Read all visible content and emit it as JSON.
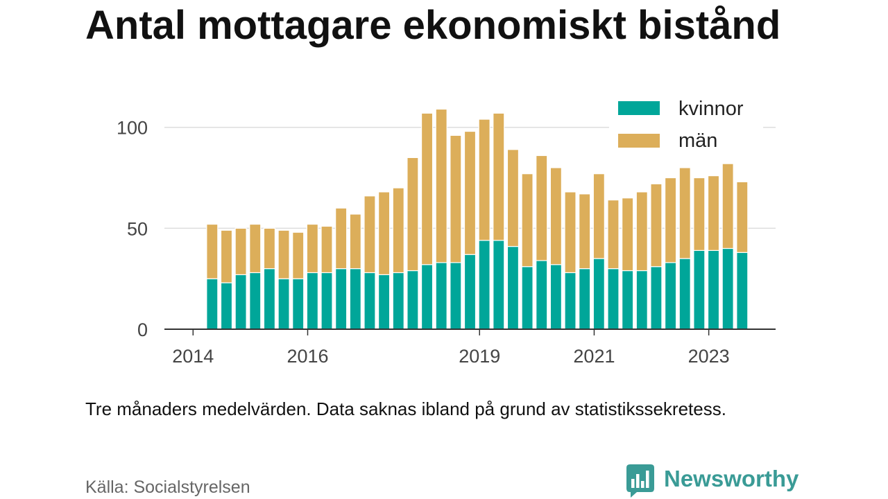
{
  "chart_data": {
    "type": "bar",
    "stacked": true,
    "title": "Antal mottagare ekonomiskt bistånd",
    "note": "Tre månaders medelvärden. Data saknas ibland på grund av statistikssekretess.",
    "xlabel": "",
    "ylabel": "",
    "x": [
      "2014-05",
      "2014-08",
      "2014-11",
      "2015-02",
      "2015-05",
      "2015-08",
      "2015-11",
      "2016-02",
      "2016-05",
      "2016-08",
      "2016-11",
      "2017-02",
      "2017-05",
      "2017-08",
      "2017-11",
      "2018-02",
      "2018-05",
      "2018-08",
      "2018-11",
      "2019-02",
      "2019-05",
      "2019-08",
      "2019-11",
      "2020-02",
      "2020-05",
      "2020-08",
      "2020-11",
      "2021-02",
      "2021-05",
      "2021-08",
      "2021-11",
      "2022-02",
      "2022-05",
      "2022-08",
      "2022-11",
      "2023-02",
      "2023-05",
      "2023-08"
    ],
    "series": [
      {
        "name": "kvinnor",
        "color": "#00a699",
        "values": [
          25,
          23,
          27,
          28,
          30,
          25,
          25,
          28,
          28,
          30,
          30,
          28,
          27,
          28,
          29,
          32,
          33,
          33,
          37,
          44,
          44,
          41,
          31,
          34,
          32,
          28,
          30,
          35,
          30,
          29,
          29,
          31,
          33,
          35,
          39,
          39,
          40,
          38
        ]
      },
      {
        "name": "män",
        "color": "#dcae5a",
        "values": [
          27,
          26,
          23,
          24,
          20,
          24,
          23,
          24,
          23,
          30,
          27,
          38,
          41,
          42,
          56,
          75,
          76,
          63,
          61,
          60,
          63,
          48,
          46,
          52,
          48,
          40,
          37,
          42,
          34,
          36,
          39,
          41,
          42,
          45,
          36,
          37,
          42,
          35
        ]
      }
    ],
    "xlim": [
      "2013-07",
      "2024-03"
    ],
    "xticks": [
      "2014",
      "2016",
      "2019",
      "2021",
      "2023"
    ],
    "ylim": [
      0,
      115
    ],
    "yticks": [
      0,
      50,
      100
    ],
    "grid": true,
    "legend": "top-right"
  },
  "source": "Källa: Socialstyrelsen",
  "brand": {
    "name": "Newsworthy",
    "icon": "newsworthy-logo-icon",
    "color": "#3a9b96"
  }
}
